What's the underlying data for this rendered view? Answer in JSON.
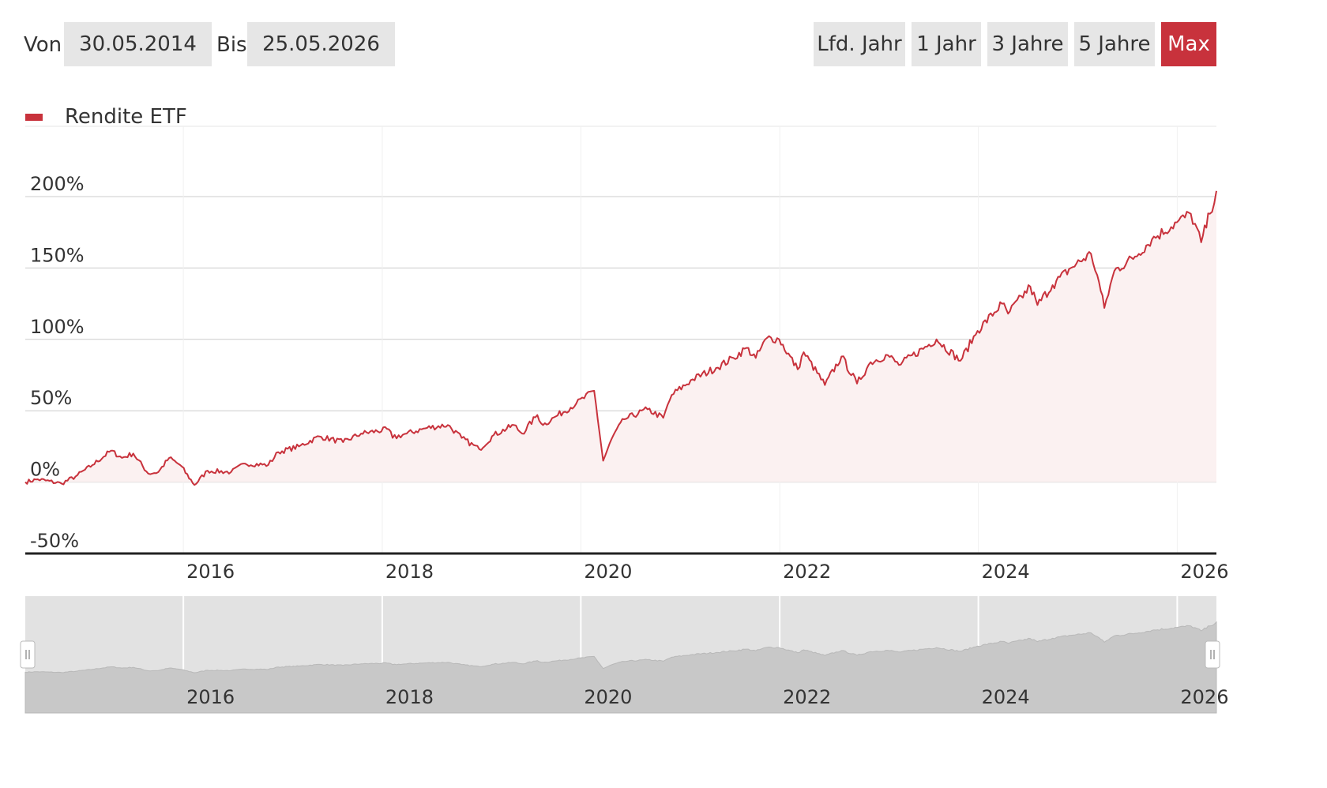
{
  "range": {
    "from_label": "Von",
    "from_value": "30.05.2014",
    "to_label": "Bis",
    "to_value": "25.05.2026"
  },
  "zoom_buttons": [
    {
      "label": "Lfd. Jahr",
      "active": false
    },
    {
      "label": "1 Jahr",
      "active": false
    },
    {
      "label": "3 Jahre",
      "active": false
    },
    {
      "label": "5 Jahre",
      "active": false
    },
    {
      "label": "Max",
      "active": true
    }
  ],
  "legend": {
    "label": "Rendite ETF",
    "color": "#c8323c"
  },
  "navigator": {
    "x_ticks": [
      "2016",
      "2018",
      "2020",
      "2022",
      "2024",
      "2026"
    ]
  },
  "colors": {
    "accent": "#c8323c",
    "fill": "#fbf1f1",
    "navigator_bg": "#e2e2e2",
    "navigator_area": "#c8c8c8"
  },
  "chart_data": {
    "type": "line",
    "title": "",
    "xlabel": "",
    "ylabel": "",
    "x_range": [
      "2014-05-30",
      "2026-05-25"
    ],
    "ylim": [
      -50,
      200
    ],
    "y_ticks": [
      -50,
      0,
      50,
      100,
      150,
      200
    ],
    "y_tick_labels": [
      "-50%",
      "0%",
      "50%",
      "100%",
      "150%",
      "200%"
    ],
    "x_ticks": [
      "2016",
      "2018",
      "2020",
      "2022",
      "2024",
      "2026"
    ],
    "legend_position": "top-left",
    "grid": true,
    "series": [
      {
        "name": "Rendite ETF",
        "color": "#c8323c",
        "points": [
          [
            "2014-05-30",
            0
          ],
          [
            "2014-07-15",
            2
          ],
          [
            "2014-10-10",
            -1
          ],
          [
            "2014-12-01",
            4
          ],
          [
            "2015-02-01",
            12
          ],
          [
            "2015-04-10",
            22
          ],
          [
            "2015-05-20",
            17
          ],
          [
            "2015-07-01",
            20
          ],
          [
            "2015-08-25",
            6
          ],
          [
            "2015-10-01",
            7
          ],
          [
            "2015-11-10",
            17
          ],
          [
            "2015-12-20",
            12
          ],
          [
            "2016-02-11",
            -2
          ],
          [
            "2016-03-30",
            8
          ],
          [
            "2016-06-24",
            7
          ],
          [
            "2016-08-15",
            13
          ],
          [
            "2016-11-08",
            12
          ],
          [
            "2016-12-15",
            21
          ],
          [
            "2017-03-01",
            25
          ],
          [
            "2017-05-15",
            32
          ],
          [
            "2017-08-10",
            28
          ],
          [
            "2017-10-15",
            34
          ],
          [
            "2018-01-25",
            37
          ],
          [
            "2018-02-08",
            31
          ],
          [
            "2018-04-01",
            34
          ],
          [
            "2018-06-15",
            38
          ],
          [
            "2018-08-30",
            40
          ],
          [
            "2018-10-20",
            31
          ],
          [
            "2018-12-24",
            23
          ],
          [
            "2019-02-15",
            33
          ],
          [
            "2019-04-30",
            40
          ],
          [
            "2019-05-30",
            34
          ],
          [
            "2019-07-25",
            47
          ],
          [
            "2019-08-15",
            40
          ],
          [
            "2019-10-01",
            46
          ],
          [
            "2019-12-15",
            55
          ],
          [
            "2020-02-19",
            64
          ],
          [
            "2020-03-23",
            15
          ],
          [
            "2020-04-30",
            33
          ],
          [
            "2020-06-08",
            44
          ],
          [
            "2020-09-02",
            51
          ],
          [
            "2020-10-30",
            45
          ],
          [
            "2020-11-30",
            61
          ],
          [
            "2021-02-15",
            72
          ],
          [
            "2021-05-12",
            80
          ],
          [
            "2021-07-15",
            87
          ],
          [
            "2021-09-01",
            94
          ],
          [
            "2021-10-05",
            87
          ],
          [
            "2021-11-15",
            101
          ],
          [
            "2021-12-30",
            100
          ],
          [
            "2022-03-08",
            79
          ],
          [
            "2022-03-30",
            91
          ],
          [
            "2022-06-16",
            68
          ],
          [
            "2022-08-16",
            88
          ],
          [
            "2022-10-12",
            69
          ],
          [
            "2022-12-01",
            84
          ],
          [
            "2023-02-02",
            89
          ],
          [
            "2023-03-15",
            82
          ],
          [
            "2023-07-31",
            100
          ],
          [
            "2023-10-27",
            85
          ],
          [
            "2023-12-29",
            106
          ],
          [
            "2024-03-28",
            125
          ],
          [
            "2024-04-19",
            118
          ],
          [
            "2024-07-10",
            137
          ],
          [
            "2024-08-05",
            124
          ],
          [
            "2024-09-30",
            138
          ],
          [
            "2024-12-06",
            150
          ],
          [
            "2025-02-18",
            160
          ],
          [
            "2025-03-13",
            145
          ],
          [
            "2025-04-08",
            122
          ],
          [
            "2025-05-15",
            148
          ],
          [
            "2025-07-30",
            158
          ],
          [
            "2025-09-30",
            170
          ],
          [
            "2025-12-31",
            182
          ],
          [
            "2026-02-20",
            188
          ],
          [
            "2026-03-30",
            168
          ],
          [
            "2026-05-01",
            188
          ],
          [
            "2026-05-25",
            204
          ]
        ]
      }
    ]
  }
}
